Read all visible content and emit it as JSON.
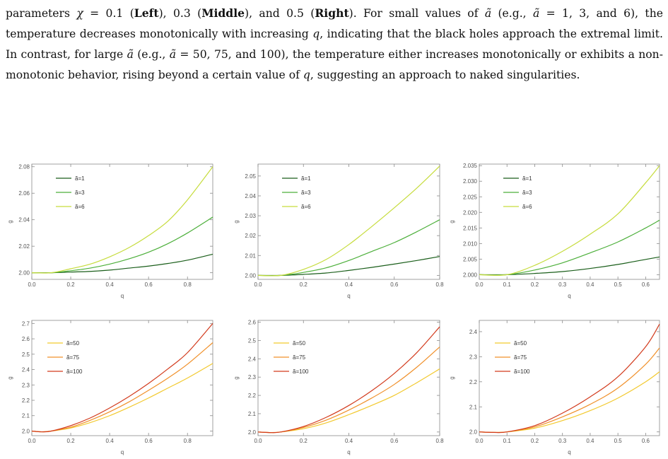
{
  "paragraph": {
    "segments": [
      {
        "t": "parameters ",
        "s": ""
      },
      {
        "t": "χ",
        "s": "i"
      },
      {
        "t": " = 0.1 (",
        "s": ""
      },
      {
        "t": "Left",
        "s": "b"
      },
      {
        "t": "), 0.3 (",
        "s": ""
      },
      {
        "t": "Middle",
        "s": "b"
      },
      {
        "t": "), and 0.5 (",
        "s": ""
      },
      {
        "t": "Right",
        "s": "b"
      },
      {
        "t": "). For small values of ",
        "s": ""
      },
      {
        "t": "ã",
        "s": "i"
      },
      {
        "t": " (e.g., ",
        "s": ""
      },
      {
        "t": "ã",
        "s": "i"
      },
      {
        "t": " = 1, 3, and 6), the temperature decreases monotonically with increasing ",
        "s": ""
      },
      {
        "t": "q",
        "s": "i"
      },
      {
        "t": ", indicating that the black holes approach the extremal limit. In contrast, for large ",
        "s": ""
      },
      {
        "t": "ã",
        "s": "i"
      },
      {
        "t": " (e.g., ",
        "s": ""
      },
      {
        "t": "ã",
        "s": "i"
      },
      {
        "t": " = 50, 75, and 100), the temperature either increases monotonically or exhibits a non-monotonic behavior, rising beyond a certain value of ",
        "s": ""
      },
      {
        "t": "q",
        "s": "i"
      },
      {
        "t": ", suggesting an approach to naked singularities.",
        "s": ""
      }
    ]
  },
  "colors": {
    "dark_green": "#1a5e1a",
    "mid_green": "#4caf3a",
    "light_green": "#c6dc3c",
    "yellow": "#f2c92e",
    "orange": "#f0902a",
    "red": "#d23a1c"
  },
  "chart_data": [
    {
      "type": "line",
      "xlabel": "q",
      "ylabel": "g",
      "xlim": [
        0,
        0.93
      ],
      "ylim": [
        1.995,
        2.082
      ],
      "xticks": [
        "0.0",
        "0.2",
        "0.4",
        "0.6",
        "0.8"
      ],
      "xtick_values": [
        0,
        0.2,
        0.4,
        0.6,
        0.8
      ],
      "yticks": [
        "2.00",
        "2.02",
        "2.04",
        "2.06",
        "2.08"
      ],
      "ytick_values": [
        2.0,
        2.02,
        2.04,
        2.06,
        2.08
      ],
      "legend_position": "top-left",
      "series": [
        {
          "name": "ã=1",
          "color": "dark_green",
          "x": [
            0,
            0.1,
            0.2,
            0.3,
            0.4,
            0.5,
            0.6,
            0.7,
            0.8,
            0.93
          ],
          "y": [
            2.0,
            2.0,
            2.0005,
            2.001,
            2.002,
            2.0035,
            2.005,
            2.007,
            2.0095,
            2.014
          ]
        },
        {
          "name": "ã=3",
          "color": "mid_green",
          "x": [
            0,
            0.1,
            0.2,
            0.3,
            0.4,
            0.5,
            0.6,
            0.7,
            0.8,
            0.93
          ],
          "y": [
            2.0,
            2.0,
            2.0015,
            2.0035,
            2.0065,
            2.0105,
            2.0155,
            2.022,
            2.03,
            2.042
          ]
        },
        {
          "name": "ã=6",
          "color": "light_green",
          "x": [
            0,
            0.1,
            0.2,
            0.3,
            0.4,
            0.5,
            0.6,
            0.7,
            0.8,
            0.93
          ],
          "y": [
            2.0,
            2.0,
            2.003,
            2.0065,
            2.012,
            2.019,
            2.028,
            2.039,
            2.055,
            2.08
          ]
        }
      ]
    },
    {
      "type": "line",
      "xlabel": "q",
      "ylabel": "g",
      "xlim": [
        0,
        0.8
      ],
      "ylim": [
        1.998,
        2.056
      ],
      "xticks": [
        "0.0",
        "0.2",
        "0.4",
        "0.6",
        "0.8"
      ],
      "xtick_values": [
        0,
        0.2,
        0.4,
        0.6,
        0.8
      ],
      "yticks": [
        "2.00",
        "2.01",
        "2.02",
        "2.03",
        "2.04",
        "2.05"
      ],
      "ytick_values": [
        2.0,
        2.01,
        2.02,
        2.03,
        2.04,
        2.05
      ],
      "legend_position": "top-left",
      "series": [
        {
          "name": "ã=1",
          "color": "dark_green",
          "x": [
            0,
            0.1,
            0.2,
            0.3,
            0.4,
            0.5,
            0.6,
            0.7,
            0.8
          ],
          "y": [
            2.0,
            2.0,
            2.0005,
            2.0012,
            2.0025,
            2.004,
            2.0057,
            2.0075,
            2.0095
          ]
        },
        {
          "name": "ã=3",
          "color": "mid_green",
          "x": [
            0,
            0.1,
            0.2,
            0.3,
            0.4,
            0.5,
            0.6,
            0.7,
            0.8
          ],
          "y": [
            2.0,
            2.0,
            2.0015,
            2.0038,
            2.0075,
            2.012,
            2.0165,
            2.022,
            2.028
          ]
        },
        {
          "name": "ã=6",
          "color": "light_green",
          "x": [
            0,
            0.1,
            0.2,
            0.3,
            0.4,
            0.5,
            0.6,
            0.7,
            0.8
          ],
          "y": [
            2.0,
            2.0,
            2.003,
            2.008,
            2.0155,
            2.0245,
            2.034,
            2.044,
            2.055
          ]
        }
      ]
    },
    {
      "type": "line",
      "xlabel": "q",
      "ylabel": "g",
      "xlim": [
        0,
        0.65
      ],
      "ylim": [
        1.9985,
        2.0355
      ],
      "xticks": [
        "0.0",
        "0.1",
        "0.2",
        "0.3",
        "0.4",
        "0.5",
        "0.6"
      ],
      "xtick_values": [
        0,
        0.1,
        0.2,
        0.3,
        0.4,
        0.5,
        0.6
      ],
      "yticks": [
        "2.000",
        "2.005",
        "2.010",
        "2.015",
        "2.020",
        "2.025",
        "2.030",
        "2.035"
      ],
      "ytick_values": [
        2.0,
        2.005,
        2.01,
        2.015,
        2.02,
        2.025,
        2.03,
        2.035
      ],
      "legend_position": "top-left",
      "series": [
        {
          "name": "ã=1",
          "color": "dark_green",
          "x": [
            0,
            0.1,
            0.2,
            0.3,
            0.4,
            0.5,
            0.6,
            0.65
          ],
          "y": [
            2.0,
            2.0,
            2.0004,
            2.001,
            2.002,
            2.0033,
            2.0049,
            2.0057
          ]
        },
        {
          "name": "ã=3",
          "color": "mid_green",
          "x": [
            0,
            0.1,
            0.2,
            0.3,
            0.4,
            0.5,
            0.6,
            0.65
          ],
          "y": [
            2.0,
            2.0,
            2.0015,
            2.0038,
            2.007,
            2.0105,
            2.015,
            2.0175
          ]
        },
        {
          "name": "ã=6",
          "color": "light_green",
          "x": [
            0,
            0.1,
            0.2,
            0.3,
            0.4,
            0.5,
            0.6,
            0.65
          ],
          "y": [
            2.0,
            2.0,
            2.003,
            2.0075,
            2.013,
            2.0195,
            2.0295,
            2.035
          ]
        }
      ]
    },
    {
      "type": "line",
      "xlabel": "q",
      "ylabel": "g",
      "xlim": [
        0,
        0.93
      ],
      "ylim": [
        1.97,
        2.72
      ],
      "xticks": [
        "0.0",
        "0.2",
        "0.4",
        "0.6",
        "0.8"
      ],
      "xtick_values": [
        0,
        0.2,
        0.4,
        0.6,
        0.8
      ],
      "yticks": [
        "2.0",
        "2.1",
        "2.2",
        "2.3",
        "2.4",
        "2.5",
        "2.6",
        "2.7"
      ],
      "ytick_values": [
        2.0,
        2.1,
        2.2,
        2.3,
        2.4,
        2.5,
        2.6,
        2.7
      ],
      "legend_position": "top-left",
      "series": [
        {
          "name": "ã=50",
          "color": "yellow",
          "x": [
            0,
            0.05,
            0.1,
            0.2,
            0.3,
            0.4,
            0.5,
            0.6,
            0.7,
            0.8,
            0.93
          ],
          "y": [
            2.0,
            1.995,
            2.0,
            2.02,
            2.055,
            2.1,
            2.155,
            2.215,
            2.28,
            2.345,
            2.44
          ]
        },
        {
          "name": "ã=75",
          "color": "orange",
          "x": [
            0,
            0.05,
            0.1,
            0.2,
            0.3,
            0.4,
            0.5,
            0.6,
            0.7,
            0.8,
            0.93
          ],
          "y": [
            2.0,
            1.995,
            2.0,
            2.025,
            2.07,
            2.125,
            2.19,
            2.265,
            2.345,
            2.435,
            2.575
          ]
        },
        {
          "name": "ã=100",
          "color": "red",
          "x": [
            0,
            0.05,
            0.1,
            0.2,
            0.3,
            0.4,
            0.5,
            0.6,
            0.7,
            0.8,
            0.93
          ],
          "y": [
            2.0,
            1.995,
            2.0,
            2.035,
            2.085,
            2.15,
            2.225,
            2.31,
            2.405,
            2.51,
            2.7
          ]
        }
      ]
    },
    {
      "type": "line",
      "xlabel": "q",
      "ylabel": "g",
      "xlim": [
        0,
        0.8
      ],
      "ylim": [
        1.98,
        2.61
      ],
      "xticks": [
        "0.0",
        "0.2",
        "0.4",
        "0.6",
        "0.8"
      ],
      "xtick_values": [
        0,
        0.2,
        0.4,
        0.6,
        0.8
      ],
      "yticks": [
        "2.0",
        "2.1",
        "2.2",
        "2.3",
        "2.4",
        "2.5",
        "2.6"
      ],
      "ytick_values": [
        2.0,
        2.1,
        2.2,
        2.3,
        2.4,
        2.5,
        2.6
      ],
      "legend_position": "top-left",
      "series": [
        {
          "name": "ã=50",
          "color": "yellow",
          "x": [
            0,
            0.05,
            0.1,
            0.2,
            0.3,
            0.4,
            0.5,
            0.6,
            0.7,
            0.8
          ],
          "y": [
            2.0,
            1.997,
            2.0,
            2.018,
            2.05,
            2.095,
            2.145,
            2.2,
            2.27,
            2.345
          ]
        },
        {
          "name": "ã=75",
          "color": "orange",
          "x": [
            0,
            0.05,
            0.1,
            0.2,
            0.3,
            0.4,
            0.5,
            0.6,
            0.7,
            0.8
          ],
          "y": [
            2.0,
            1.997,
            2.0,
            2.025,
            2.065,
            2.12,
            2.185,
            2.26,
            2.355,
            2.465
          ]
        },
        {
          "name": "ã=100",
          "color": "red",
          "x": [
            0,
            0.05,
            0.1,
            0.2,
            0.3,
            0.4,
            0.5,
            0.6,
            0.7,
            0.8
          ],
          "y": [
            2.0,
            1.997,
            2.0,
            2.03,
            2.08,
            2.145,
            2.225,
            2.32,
            2.435,
            2.575
          ]
        }
      ]
    },
    {
      "type": "line",
      "xlabel": "q",
      "ylabel": "g",
      "xlim": [
        0,
        0.65
      ],
      "ylim": [
        1.985,
        2.445
      ],
      "xticks": [
        "0.0",
        "0.1",
        "0.2",
        "0.3",
        "0.4",
        "0.5",
        "0.6"
      ],
      "xtick_values": [
        0,
        0.1,
        0.2,
        0.3,
        0.4,
        0.5,
        0.6
      ],
      "yticks": [
        "2.0",
        "2.1",
        "2.2",
        "2.3",
        "2.4"
      ],
      "ytick_values": [
        2.0,
        2.1,
        2.2,
        2.3,
        2.4
      ],
      "legend_position": "top-left",
      "series": [
        {
          "name": "ã=50",
          "color": "yellow",
          "x": [
            0,
            0.05,
            0.1,
            0.2,
            0.3,
            0.4,
            0.5,
            0.6,
            0.65
          ],
          "y": [
            2.0,
            1.998,
            2.0,
            2.015,
            2.045,
            2.085,
            2.135,
            2.2,
            2.24
          ]
        },
        {
          "name": "ã=75",
          "color": "orange",
          "x": [
            0,
            0.05,
            0.1,
            0.2,
            0.3,
            0.4,
            0.5,
            0.6,
            0.65
          ],
          "y": [
            2.0,
            1.998,
            2.0,
            2.02,
            2.06,
            2.11,
            2.175,
            2.27,
            2.335
          ]
        },
        {
          "name": "ã=100",
          "color": "red",
          "x": [
            0,
            0.05,
            0.1,
            0.2,
            0.3,
            0.4,
            0.5,
            0.6,
            0.65
          ],
          "y": [
            2.0,
            1.998,
            2.0,
            2.025,
            2.075,
            2.14,
            2.22,
            2.34,
            2.43
          ]
        }
      ]
    }
  ]
}
